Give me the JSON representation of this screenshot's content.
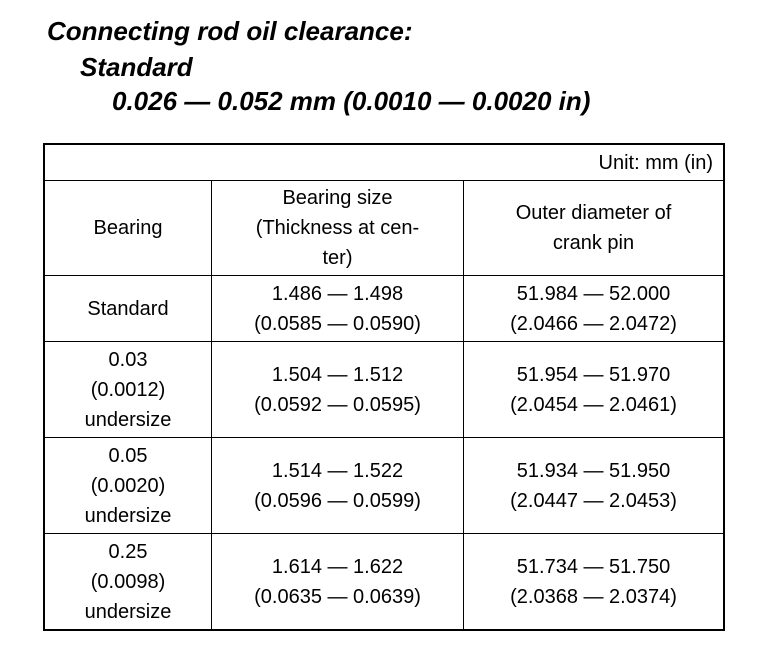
{
  "header": {
    "title": "Connecting rod oil clearance:",
    "subtitle": "Standard",
    "value": "0.026 — 0.052 mm (0.0010 — 0.0020 in)"
  },
  "table": {
    "unit": "Unit: mm (in)",
    "columns": [
      [
        "Bearing"
      ],
      [
        "Bearing size",
        "(Thickness at cen-",
        "ter)"
      ],
      [
        "Outer diameter of",
        "crank pin"
      ]
    ],
    "rows": [
      [
        [
          "Standard"
        ],
        [
          "1.486 — 1.498",
          "(0.0585 — 0.0590)"
        ],
        [
          "51.984 — 52.000",
          "(2.0466 — 2.0472)"
        ]
      ],
      [
        [
          "0.03",
          "(0.0012)",
          "undersize"
        ],
        [
          "1.504 — 1.512",
          "(0.0592 — 0.0595)"
        ],
        [
          "51.954 — 51.970",
          "(2.0454 — 2.0461)"
        ]
      ],
      [
        [
          "0.05",
          "(0.0020)",
          "undersize"
        ],
        [
          "1.514 — 1.522",
          "(0.0596 — 0.0599)"
        ],
        [
          "51.934 — 51.950",
          "(2.0447 — 2.0453)"
        ]
      ],
      [
        [
          "0.25",
          "(0.0098)",
          "undersize"
        ],
        [
          "1.614 — 1.622",
          "(0.0635 — 0.0639)"
        ],
        [
          "51.734 — 51.750",
          "(2.0368 — 2.0374)"
        ]
      ]
    ]
  }
}
